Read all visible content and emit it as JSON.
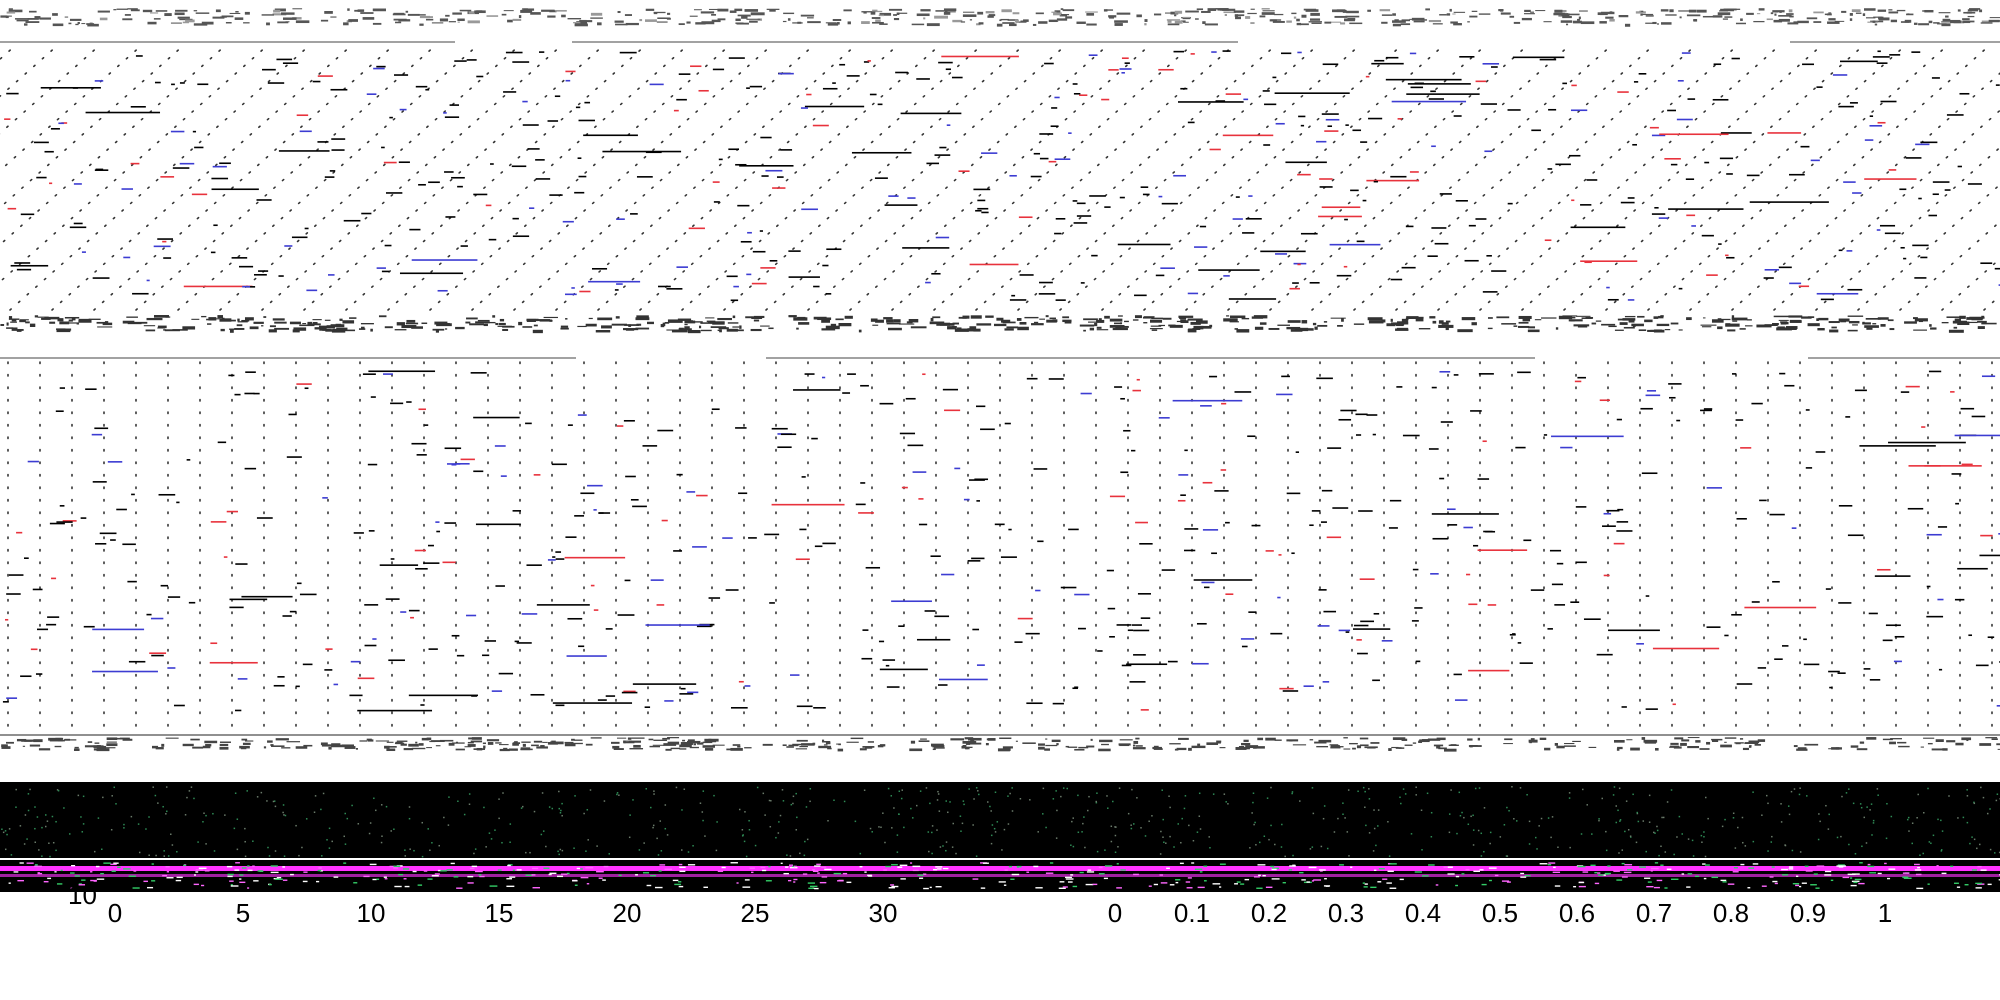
{
  "chart_data": [
    {
      "type": "scatter",
      "panel": "upper diagonal dot-grid panel with scattered black, red and blue dash marks",
      "mark_colors": [
        "#000000",
        "#e8323c",
        "#3c3cd2"
      ],
      "grid": "dotted diagonal lines",
      "bands": 3,
      "x_tick_labels": [],
      "y_tick_labels": []
    },
    {
      "type": "scatter",
      "panel": "middle vertical dot-grid panel with scattered black, red and blue dash marks",
      "mark_colors": [
        "#000000",
        "#e8323c",
        "#3c3cd2"
      ],
      "grid": "dotted vertical lines",
      "bands": 3,
      "x_tick_labels": [],
      "y_tick_labels": []
    },
    {
      "type": "heatmap",
      "panel": "lower dark strip with speckled green/white points and a magenta band",
      "colors": [
        "#000000",
        "#ff33ff",
        "#33cc66",
        "#ffffff"
      ],
      "y_tick_labels": [
        "10"
      ],
      "x_tick_labels_left": [
        "0",
        "5",
        "10",
        "15",
        "20",
        "25",
        "30"
      ],
      "x_tick_labels_right": [
        "0",
        "0.1",
        "0.2",
        "0.3",
        "0.4",
        "0.5",
        "0.6",
        "0.7",
        "0.8",
        "0.9",
        "1"
      ]
    }
  ]
}
